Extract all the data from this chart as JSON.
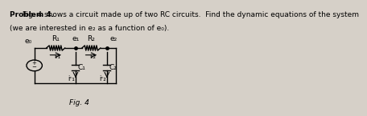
{
  "title_bold": "Problem 4.",
  "title_text": " Fig. 4 shows a circuit made up of two RC circuits.  Find the dynamic equations of the system",
  "subtitle": "(we are interested in e₂ as a function of e₀).",
  "fig_label": "Fig. 4",
  "background_color": "#d6d0c8",
  "text_color": "#000000"
}
